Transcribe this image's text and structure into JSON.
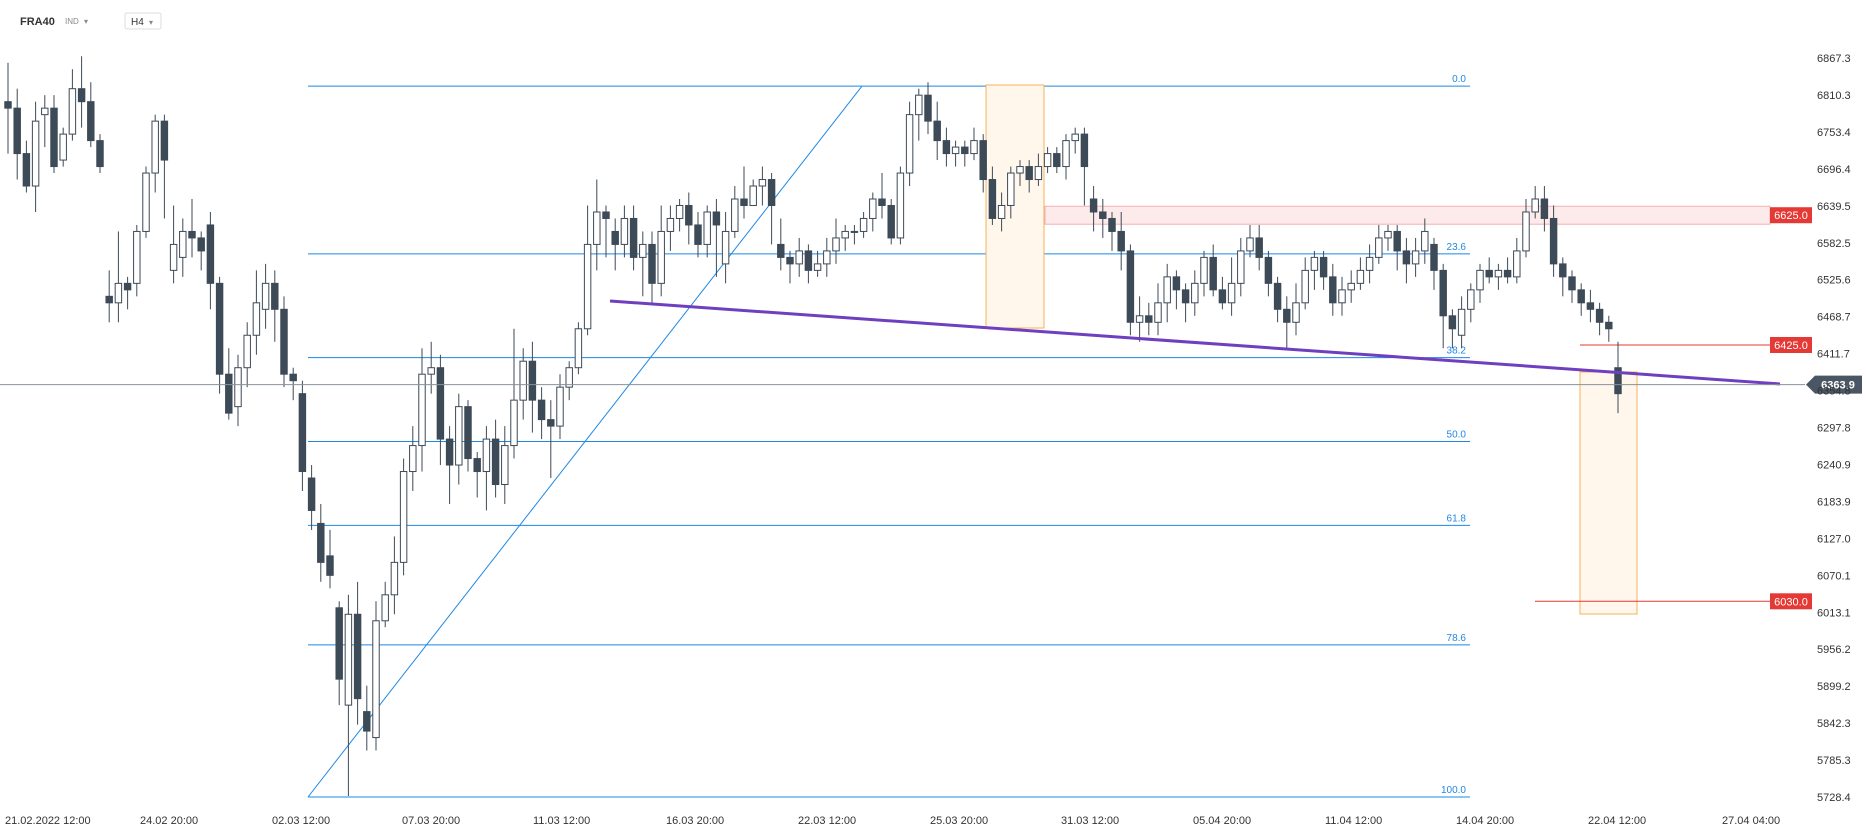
{
  "header": {
    "symbol": "FRA40",
    "market": "IND",
    "timeframe": "H4",
    "arrow": "▾"
  },
  "colors": {
    "bull_fill": "#ffffff",
    "bear_fill": "#3d4a57",
    "candle_stroke": "#3d4a57",
    "fib": "#1e88e5",
    "trend": "#6f3fbf",
    "level_tag": "#e53935",
    "price_tag": "#4a5663",
    "zone_stroke": "#f5b15a",
    "zone_fill": "#fff6ec"
  },
  "chart_data": {
    "type": "candlestick",
    "y_axis": {
      "min": 5728.4,
      "max": 6867.3,
      "ticks": [
        "6867.3",
        "6810.3",
        "6753.4",
        "6696.4",
        "6639.5",
        "6582.5",
        "6525.6",
        "6468.7",
        "6411.7",
        "6354.8",
        "6297.8",
        "6240.9",
        "6183.9",
        "6127.0",
        "6070.1",
        "6013.1",
        "5956.2",
        "5899.2",
        "5842.3",
        "5785.3",
        "5728.4"
      ]
    },
    "x_axis": {
      "labels": [
        "21.02.2022  12:00",
        "24.02  20:00",
        "02.03  12:00",
        "07.03  20:00",
        "11.03  12:00",
        "16.03  20:00",
        "22.03  12:00",
        "25.03  20:00",
        "31.03  12:00",
        "05.04  20:00",
        "11.04  12:00",
        "14.04  20:00",
        "22.04  12:00",
        "27.04  04:00"
      ]
    },
    "current_price": "6363.9",
    "fibonacci": {
      "low": 5728.4,
      "high": 6824,
      "levels": [
        {
          "ratio": 0.0,
          "label": "0.0"
        },
        {
          "ratio": 0.236,
          "label": "23.6"
        },
        {
          "ratio": 0.382,
          "label": "38.2"
        },
        {
          "ratio": 0.5,
          "label": "50.0"
        },
        {
          "ratio": 0.618,
          "label": "61.8"
        },
        {
          "ratio": 0.786,
          "label": "78.6"
        },
        {
          "ratio": 1.0,
          "label": "100.0"
        }
      ]
    },
    "levels": [
      {
        "price": 6625.0,
        "label": "6625.0",
        "band": true
      },
      {
        "price": 6425.0,
        "label": "6425.0",
        "band": false
      },
      {
        "price": 6030.0,
        "label": "6030.0",
        "band": false
      }
    ],
    "candles": [
      [
        6800,
        6790,
        6860,
        6720
      ],
      [
        6790,
        6720,
        6820,
        6680
      ],
      [
        6720,
        6670,
        6740,
        6660
      ],
      [
        6670,
        6770,
        6800,
        6630
      ],
      [
        6780,
        6790,
        6810,
        6730
      ],
      [
        6790,
        6700,
        6810,
        6690
      ],
      [
        6710,
        6750,
        6760,
        6700
      ],
      [
        6750,
        6820,
        6850,
        6740
      ],
      [
        6820,
        6800,
        6870,
        6760
      ],
      [
        6800,
        6740,
        6830,
        6730
      ],
      [
        6740,
        6700,
        6750,
        6690
      ],
      [
        6500,
        6490,
        6540,
        6460
      ],
      [
        6490,
        6520,
        6600,
        6460
      ],
      [
        6520,
        6510,
        6530,
        6480
      ],
      [
        6520,
        6600,
        6610,
        6500
      ],
      [
        6600,
        6690,
        6700,
        6590
      ],
      [
        6690,
        6770,
        6780,
        6660
      ],
      [
        6770,
        6710,
        6780,
        6620
      ],
      [
        6540,
        6580,
        6640,
        6520
      ],
      [
        6560,
        6600,
        6620,
        6530
      ],
      [
        6600,
        6590,
        6650,
        6560
      ],
      [
        6590,
        6570,
        6600,
        6540
      ],
      [
        6610,
        6520,
        6630,
        6480
      ],
      [
        6520,
        6380,
        6530,
        6350
      ],
      [
        6380,
        6320,
        6420,
        6310
      ],
      [
        6330,
        6390,
        6410,
        6300
      ],
      [
        6390,
        6440,
        6460,
        6360
      ],
      [
        6440,
        6490,
        6540,
        6410
      ],
      [
        6480,
        6520,
        6550,
        6450
      ],
      [
        6520,
        6480,
        6540,
        6430
      ],
      [
        6480,
        6380,
        6500,
        6360
      ],
      [
        6380,
        6370,
        6390,
        6340
      ],
      [
        6350,
        6230,
        6370,
        6200
      ],
      [
        6220,
        6170,
        6240,
        6140
      ],
      [
        6150,
        6090,
        6180,
        6060
      ],
      [
        6100,
        6070,
        6140,
        6050
      ],
      [
        6020,
        5910,
        6030,
        5870
      ],
      [
        5870,
        6010,
        6040,
        5730
      ],
      [
        6010,
        5880,
        6060,
        5840
      ],
      [
        5860,
        5830,
        5900,
        5800
      ],
      [
        5820,
        6000,
        6030,
        5800
      ],
      [
        6000,
        6040,
        6060,
        5990
      ],
      [
        6040,
        6090,
        6130,
        6010
      ],
      [
        6090,
        6230,
        6250,
        6070
      ],
      [
        6230,
        6270,
        6300,
        6200
      ],
      [
        6270,
        6380,
        6420,
        6230
      ],
      [
        6380,
        6390,
        6430,
        6350
      ],
      [
        6390,
        6280,
        6410,
        6240
      ],
      [
        6280,
        6240,
        6300,
        6180
      ],
      [
        6240,
        6330,
        6350,
        6210
      ],
      [
        6330,
        6250,
        6340,
        6230
      ],
      [
        6250,
        6230,
        6260,
        6190
      ],
      [
        6230,
        6280,
        6300,
        6170
      ],
      [
        6280,
        6210,
        6310,
        6190
      ],
      [
        6210,
        6270,
        6300,
        6180
      ],
      [
        6270,
        6340,
        6450,
        6250
      ],
      [
        6340,
        6400,
        6420,
        6310
      ],
      [
        6400,
        6340,
        6430,
        6290
      ],
      [
        6340,
        6310,
        6360,
        6280
      ],
      [
        6310,
        6300,
        6340,
        6220
      ],
      [
        6300,
        6360,
        6380,
        6280
      ],
      [
        6360,
        6390,
        6400,
        6340
      ],
      [
        6390,
        6450,
        6460,
        6380
      ],
      [
        6450,
        6580,
        6640,
        6440
      ],
      [
        6580,
        6630,
        6680,
        6540
      ],
      [
        6630,
        6620,
        6640,
        6560
      ],
      [
        6600,
        6580,
        6620,
        6540
      ],
      [
        6580,
        6620,
        6640,
        6560
      ],
      [
        6620,
        6560,
        6640,
        6540
      ],
      [
        6560,
        6580,
        6600,
        6500
      ],
      [
        6580,
        6520,
        6600,
        6490
      ],
      [
        6520,
        6600,
        6640,
        6500
      ],
      [
        6600,
        6620,
        6640,
        6570
      ],
      [
        6620,
        6640,
        6650,
        6600
      ],
      [
        6640,
        6610,
        6660,
        6580
      ],
      [
        6610,
        6580,
        6630,
        6560
      ],
      [
        6580,
        6630,
        6640,
        6560
      ],
      [
        6630,
        6610,
        6650,
        6530
      ],
      [
        6550,
        6600,
        6630,
        6520
      ],
      [
        6600,
        6650,
        6670,
        6590
      ],
      [
        6650,
        6640,
        6700,
        6620
      ],
      [
        6640,
        6670,
        6680,
        6640
      ],
      [
        6670,
        6680,
        6700,
        6640
      ],
      [
        6680,
        6640,
        6690,
        6580
      ],
      [
        6580,
        6560,
        6620,
        6540
      ],
      [
        6560,
        6550,
        6570,
        6520
      ],
      [
        6550,
        6570,
        6590,
        6530
      ],
      [
        6570,
        6540,
        6580,
        6520
      ],
      [
        6540,
        6550,
        6570,
        6530
      ],
      [
        6550,
        6570,
        6590,
        6530
      ],
      [
        6570,
        6590,
        6620,
        6550
      ],
      [
        6590,
        6600,
        6610,
        6570
      ],
      [
        6600,
        6600,
        6610,
        6580
      ],
      [
        6600,
        6620,
        6630,
        6590
      ],
      [
        6620,
        6650,
        6660,
        6600
      ],
      [
        6650,
        6640,
        6690,
        6620
      ],
      [
        6640,
        6590,
        6650,
        6580
      ],
      [
        6590,
        6690,
        6700,
        6580
      ],
      [
        6690,
        6780,
        6800,
        6670
      ],
      [
        6780,
        6810,
        6820,
        6740
      ],
      [
        6810,
        6770,
        6830,
        6750
      ],
      [
        6770,
        6740,
        6800,
        6710
      ],
      [
        6740,
        6720,
        6760,
        6700
      ],
      [
        6720,
        6730,
        6740,
        6700
      ],
      [
        6730,
        6720,
        6740,
        6700
      ],
      [
        6720,
        6740,
        6760,
        6710
      ],
      [
        6740,
        6680,
        6750,
        6660
      ],
      [
        6680,
        6620,
        6700,
        6610
      ],
      [
        6620,
        6640,
        6660,
        6600
      ],
      [
        6640,
        6690,
        6700,
        6620
      ],
      [
        6690,
        6700,
        6710,
        6670
      ],
      [
        6700,
        6680,
        6710,
        6660
      ],
      [
        6680,
        6700,
        6720,
        6670
      ],
      [
        6700,
        6720,
        6730,
        6690
      ],
      [
        6720,
        6700,
        6730,
        6690
      ],
      [
        6700,
        6740,
        6750,
        6680
      ],
      [
        6740,
        6750,
        6760,
        6720
      ],
      [
        6750,
        6700,
        6760,
        6640
      ],
      [
        6650,
        6630,
        6670,
        6600
      ],
      [
        6630,
        6620,
        6650,
        6590
      ],
      [
        6620,
        6600,
        6630,
        6570
      ],
      [
        6600,
        6570,
        6630,
        6540
      ],
      [
        6570,
        6460,
        6580,
        6440
      ],
      [
        6460,
        6470,
        6500,
        6430
      ],
      [
        6470,
        6460,
        6490,
        6440
      ],
      [
        6460,
        6490,
        6520,
        6440
      ],
      [
        6490,
        6530,
        6550,
        6460
      ],
      [
        6530,
        6510,
        6540,
        6480
      ],
      [
        6510,
        6490,
        6520,
        6460
      ],
      [
        6490,
        6520,
        6540,
        6470
      ],
      [
        6520,
        6560,
        6570,
        6500
      ],
      [
        6560,
        6510,
        6580,
        6500
      ],
      [
        6510,
        6490,
        6530,
        6480
      ],
      [
        6490,
        6520,
        6560,
        6470
      ],
      [
        6520,
        6570,
        6590,
        6500
      ],
      [
        6570,
        6590,
        6610,
        6560
      ],
      [
        6590,
        6560,
        6610,
        6540
      ],
      [
        6560,
        6520,
        6570,
        6500
      ],
      [
        6520,
        6480,
        6530,
        6460
      ],
      [
        6480,
        6460,
        6500,
        6420
      ],
      [
        6460,
        6490,
        6520,
        6440
      ],
      [
        6490,
        6540,
        6560,
        6480
      ],
      [
        6540,
        6560,
        6570,
        6510
      ],
      [
        6560,
        6530,
        6570,
        6510
      ],
      [
        6530,
        6490,
        6550,
        6470
      ],
      [
        6490,
        6510,
        6530,
        6470
      ],
      [
        6510,
        6520,
        6540,
        6490
      ],
      [
        6520,
        6540,
        6560,
        6510
      ],
      [
        6540,
        6560,
        6580,
        6520
      ],
      [
        6560,
        6590,
        6610,
        6550
      ],
      [
        6590,
        6600,
        6610,
        6570
      ],
      [
        6600,
        6570,
        6610,
        6540
      ],
      [
        6570,
        6550,
        6590,
        6520
      ],
      [
        6550,
        6570,
        6590,
        6530
      ],
      [
        6570,
        6600,
        6620,
        6550
      ],
      [
        6580,
        6540,
        6590,
        6510
      ],
      [
        6540,
        6470,
        6550,
        6420
      ],
      [
        6470,
        6450,
        6480,
        6420
      ],
      [
        6440,
        6480,
        6500,
        6420
      ],
      [
        6480,
        6510,
        6520,
        6460
      ],
      [
        6510,
        6540,
        6550,
        6490
      ],
      [
        6540,
        6530,
        6560,
        6520
      ],
      [
        6530,
        6540,
        6550,
        6510
      ],
      [
        6540,
        6530,
        6560,
        6520
      ],
      [
        6530,
        6570,
        6590,
        6520
      ],
      [
        6570,
        6630,
        6650,
        6560
      ],
      [
        6630,
        6650,
        6670,
        6620
      ],
      [
        6650,
        6620,
        6670,
        6600
      ],
      [
        6620,
        6550,
        6640,
        6530
      ],
      [
        6550,
        6530,
        6560,
        6500
      ],
      [
        6530,
        6510,
        6540,
        6490
      ],
      [
        6510,
        6490,
        6520,
        6470
      ],
      [
        6490,
        6480,
        6510,
        6460
      ],
      [
        6480,
        6460,
        6490,
        6440
      ],
      [
        6460,
        6450,
        6470,
        6430
      ],
      [
        6390,
        6350,
        6430,
        6320
      ]
    ]
  }
}
